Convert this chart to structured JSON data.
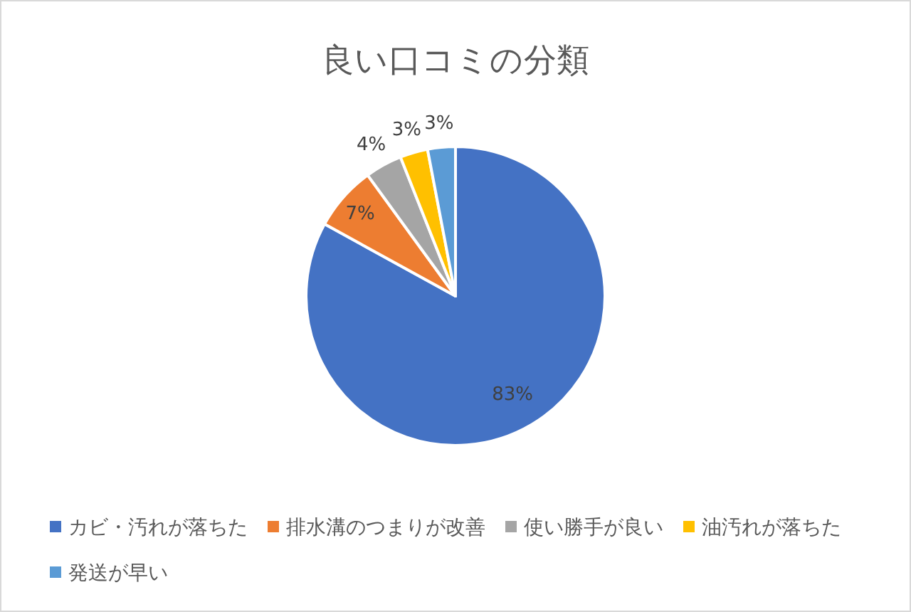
{
  "chart_data": {
    "type": "pie",
    "title": "良い口コミの分類",
    "categories": [
      "カビ・汚れが落ちた",
      "排水溝のつまりが改善",
      "使い勝手が良い",
      "油汚れが落ちた",
      "発送が早い"
    ],
    "values": [
      83,
      7,
      4,
      3,
      3
    ],
    "colors": [
      "#4472c4",
      "#ed7d31",
      "#a5a5a5",
      "#ffc000",
      "#5b9bd5"
    ],
    "value_labels": [
      "83%",
      "7%",
      "4%",
      "3%",
      "3%"
    ],
    "legend": "bottom"
  }
}
